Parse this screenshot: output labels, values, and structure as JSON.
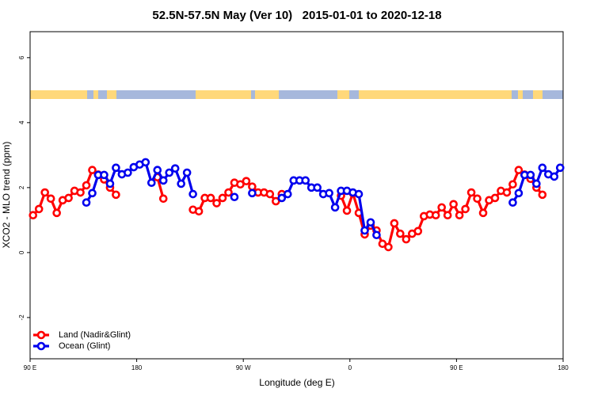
{
  "chart_data": {
    "type": "line",
    "title": "52.5N-57.5N May (Ver 10)   2015-01-01 to 2020-12-18",
    "x_label": "Longitude (deg E)",
    "y_label": "XCO2 - MLO trend (ppm)",
    "x": [
      92.5,
      97.5,
      102.5,
      107.5,
      112.5,
      117.5,
      122.5,
      127.5,
      132.5,
      137.5,
      142.5,
      147.5,
      152.5,
      157.5,
      162.5,
      167.5,
      172.5,
      177.5,
      182.5,
      187.5,
      192.5,
      197.5,
      202.5,
      207.5,
      212.5,
      217.5,
      222.5,
      227.5,
      232.5,
      237.5,
      242.5,
      247.5,
      252.5,
      257.5,
      262.5,
      267.5,
      272.5,
      277.5,
      282.5,
      287.5,
      292.5,
      297.5,
      302.5,
      307.5,
      312.5,
      317.5,
      322.5,
      327.5,
      332.5,
      337.5,
      342.5,
      347.5,
      352.5,
      357.5,
      362.5,
      367.5,
      372.5,
      377.5,
      382.5,
      387.5,
      392.5,
      397.5,
      402.5,
      407.5,
      412.5,
      417.5,
      422.5,
      427.5,
      432.5,
      437.5,
      442.5,
      447.5,
      452.5,
      457.5,
      462.5,
      467.5,
      472.5,
      477.5,
      482.5,
      487.5,
      492.5,
      497.5,
      502.5,
      507.5,
      512.5,
      517.5,
      522.5,
      527.5,
      532.5,
      537.5
    ],
    "series": [
      {
        "name": "Land (Nadir&Glint)",
        "color": "#ff0000",
        "values": [
          1.15,
          1.34,
          1.85,
          1.66,
          1.22,
          1.61,
          1.68,
          1.9,
          1.85,
          2.07,
          2.54,
          2.4,
          2.25,
          2.0,
          1.78,
          null,
          null,
          null,
          null,
          null,
          null,
          2.32,
          1.66,
          null,
          null,
          null,
          null,
          1.32,
          1.27,
          1.68,
          1.68,
          1.52,
          1.68,
          1.85,
          2.15,
          2.1,
          2.2,
          2.03,
          1.85,
          1.85,
          1.8,
          1.58,
          1.8,
          null,
          null,
          null,
          null,
          null,
          null,
          null,
          null,
          null,
          1.75,
          1.29,
          1.83,
          1.22,
          0.56,
          0.83,
          0.68,
          0.27,
          0.17,
          0.9,
          0.58,
          0.41,
          0.58,
          0.66,
          1.12,
          1.17,
          1.15,
          1.39,
          1.15,
          1.49,
          1.15,
          1.34,
          1.85,
          1.66,
          1.22,
          1.61,
          1.68,
          1.9,
          1.85,
          2.1,
          2.54,
          2.4,
          2.27,
          2.0,
          1.78,
          null,
          null,
          null
        ]
      },
      {
        "name": "Ocean (Glint)",
        "color": "#0000ee",
        "values": [
          null,
          null,
          null,
          null,
          null,
          null,
          null,
          null,
          null,
          1.54,
          1.83,
          2.39,
          2.39,
          2.12,
          2.61,
          2.41,
          2.46,
          2.63,
          2.71,
          2.78,
          2.15,
          2.54,
          2.22,
          2.46,
          2.59,
          2.12,
          2.46,
          1.8,
          null,
          null,
          null,
          null,
          null,
          null,
          1.71,
          null,
          null,
          1.83,
          null,
          null,
          null,
          null,
          1.68,
          1.8,
          2.22,
          2.22,
          2.22,
          2.0,
          2.0,
          1.8,
          1.83,
          1.39,
          1.9,
          1.9,
          1.85,
          1.8,
          0.68,
          0.93,
          0.54,
          null,
          null,
          null,
          null,
          null,
          null,
          null,
          null,
          null,
          null,
          null,
          null,
          null,
          null,
          null,
          null,
          null,
          null,
          null,
          null,
          null,
          null,
          1.54,
          1.83,
          2.39,
          2.39,
          2.12,
          2.61,
          2.41,
          2.34,
          2.61
        ]
      }
    ],
    "xlim": [
      90,
      540
    ],
    "xticks": [
      {
        "value": 90,
        "label": "90 E"
      },
      {
        "value": 180,
        "label": "180"
      },
      {
        "value": 270,
        "label": "90 W"
      },
      {
        "value": 360,
        "label": "0"
      },
      {
        "value": 450,
        "label": "90 E"
      },
      {
        "value": 540,
        "label": "180"
      }
    ],
    "ylim": [
      -3.27,
      6.8
    ],
    "yticks": [
      -2,
      0,
      2,
      4,
      6
    ],
    "legend": "bottom-left"
  }
}
